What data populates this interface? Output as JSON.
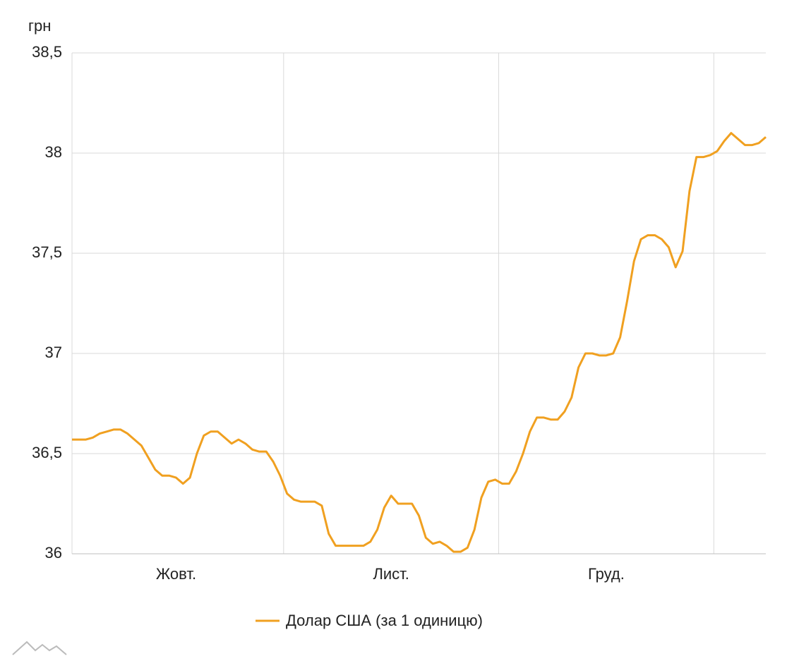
{
  "chart_data": {
    "type": "line",
    "y_label": "грн",
    "categories": [
      null,
      null,
      null,
      null,
      null,
      null,
      null,
      null,
      null,
      null,
      null,
      null,
      null,
      null,
      null,
      "Жовт.",
      null,
      null,
      null,
      null,
      null,
      null,
      null,
      null,
      null,
      null,
      null,
      null,
      null,
      null,
      null,
      null,
      null,
      null,
      null,
      null,
      null,
      null,
      null,
      null,
      null,
      null,
      null,
      null,
      null,
      null,
      "Лист.",
      null,
      null,
      null,
      null,
      null,
      null,
      null,
      null,
      null,
      null,
      null,
      null,
      null,
      null,
      null,
      null,
      null,
      null,
      null,
      null,
      null,
      null,
      null,
      null,
      null,
      null,
      null,
      null,
      null,
      null,
      "Груд.",
      null,
      null,
      null,
      null,
      null,
      null,
      null,
      null,
      null,
      null,
      null,
      null,
      null,
      null,
      null,
      null,
      null,
      null,
      null,
      null,
      null,
      null,
      null
    ],
    "series": [
      {
        "name": "Долар США (за 1 одиницю)",
        "color": "#f0a020",
        "values": [
          36.57,
          36.57,
          36.57,
          36.58,
          36.6,
          36.61,
          36.62,
          36.62,
          36.6,
          36.57,
          36.54,
          36.48,
          36.42,
          36.39,
          36.39,
          36.38,
          36.35,
          36.38,
          36.5,
          36.59,
          36.61,
          36.61,
          36.58,
          36.55,
          36.57,
          36.55,
          36.52,
          36.51,
          36.51,
          36.46,
          36.39,
          36.3,
          36.27,
          36.26,
          36.26,
          36.26,
          36.24,
          36.1,
          36.04,
          36.04,
          36.04,
          36.04,
          36.04,
          36.06,
          36.12,
          36.23,
          36.29,
          36.25,
          36.25,
          36.25,
          36.19,
          36.08,
          36.05,
          36.06,
          36.04,
          36.01,
          36.01,
          36.03,
          36.12,
          36.28,
          36.36,
          36.37,
          36.35,
          36.35,
          36.41,
          36.5,
          36.61,
          36.68,
          36.68,
          36.67,
          36.67,
          36.71,
          36.78,
          36.93,
          37,
          37,
          36.99,
          36.99,
          37,
          37.08,
          37.26,
          37.46,
          37.57,
          37.59,
          37.59,
          37.57,
          37.53,
          37.43,
          37.51,
          37.81,
          37.98,
          37.98,
          37.99,
          38.01,
          38.06,
          38.1,
          38.07,
          38.04,
          38.04,
          38.05,
          38.08
        ]
      }
    ],
    "ylim": [
      36,
      38.5
    ],
    "yticks": [
      36,
      {
        "value": 36.5,
        "label": "36,5"
      },
      37,
      {
        "value": 37.5,
        "label": "37,5"
      },
      38,
      {
        "value": 38.5,
        "label": "38,5"
      }
    ],
    "grid": true
  }
}
